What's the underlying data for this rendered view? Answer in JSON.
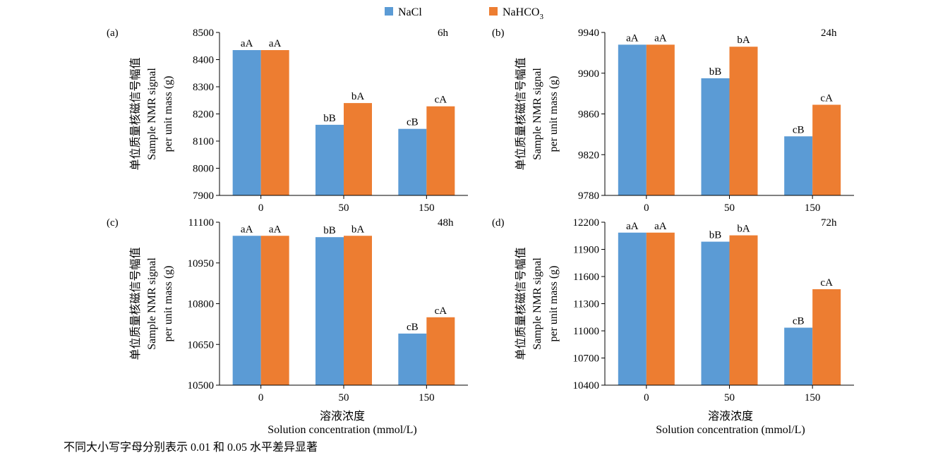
{
  "legend": [
    {
      "name": "NaCl",
      "color": "#5B9BD5"
    },
    {
      "name": "NaHCO",
      "subscript": "3",
      "color": "#ED7D31"
    }
  ],
  "x_axis": {
    "label_cn": "溶液浓度",
    "label_en": "Solution concentration (mmol/L)"
  },
  "footnote": "不同大小写字母分别表示 0.01 和 0.05 水平差异显著",
  "chart_data": [
    {
      "type": "bar",
      "panel": "(a)",
      "title": "6h",
      "categories": [
        "0",
        "50",
        "150"
      ],
      "ylabel_cn": "单位质量核磁信号幅值",
      "ylabel_en": [
        "Sample NMR signal",
        "per unit mass (g)"
      ],
      "ylim": [
        7900,
        8500
      ],
      "yticks": [
        7900,
        8000,
        8100,
        8200,
        8300,
        8400,
        8500
      ],
      "series": [
        {
          "name": "NaCl",
          "values": [
            8435,
            8160,
            8145
          ],
          "labels": [
            "aA",
            "bB",
            "cB"
          ]
        },
        {
          "name": "NaHCO3",
          "values": [
            8435,
            8240,
            8228
          ],
          "labels": [
            "aA",
            "bA",
            "cA"
          ]
        }
      ]
    },
    {
      "type": "bar",
      "panel": "(b)",
      "title": "24h",
      "categories": [
        "0",
        "50",
        "150"
      ],
      "ylabel_cn": "单位质量核磁信号幅值",
      "ylabel_en": [
        "Sample NMR signal",
        "per unit mass (g)"
      ],
      "ylim": [
        9780,
        9940
      ],
      "yticks": [
        9780,
        9820,
        9860,
        9900,
        9940
      ],
      "series": [
        {
          "name": "NaCl",
          "values": [
            9928,
            9895,
            9838
          ],
          "labels": [
            "aA",
            "bB",
            "cB"
          ]
        },
        {
          "name": "NaHCO3",
          "values": [
            9928,
            9926,
            9869
          ],
          "labels": [
            "aA",
            "bA",
            "cA"
          ]
        }
      ]
    },
    {
      "type": "bar",
      "panel": "(c)",
      "title": "48h",
      "categories": [
        "0",
        "50",
        "150"
      ],
      "ylabel_cn": "单位质量核磁信号幅值",
      "ylabel_en": [
        "Sample NMR signal",
        "per unit mass (g)"
      ],
      "ylim": [
        10500,
        11100
      ],
      "yticks": [
        10500,
        10650,
        10800,
        10950,
        11100
      ],
      "series": [
        {
          "name": "NaCl",
          "values": [
            11050,
            11045,
            10690
          ],
          "labels": [
            "aA",
            "bB",
            "cB"
          ]
        },
        {
          "name": "NaHCO3",
          "values": [
            11050,
            11050,
            10750
          ],
          "labels": [
            "aA",
            "bA",
            "cA"
          ]
        }
      ]
    },
    {
      "type": "bar",
      "panel": "(d)",
      "title": "72h",
      "categories": [
        "0",
        "50",
        "150"
      ],
      "ylabel_cn": "单位质量核磁信号幅值",
      "ylabel_en": [
        "Sample NMR signal",
        "per unit mass (g)"
      ],
      "ylim": [
        10400,
        12200
      ],
      "yticks": [
        10400,
        10700,
        11000,
        11300,
        11600,
        11900,
        12200
      ],
      "series": [
        {
          "name": "NaCl",
          "values": [
            12085,
            11985,
            11035
          ],
          "labels": [
            "aA",
            "bB",
            "cB"
          ]
        },
        {
          "name": "NaHCO3",
          "values": [
            12085,
            12055,
            11460
          ],
          "labels": [
            "aA",
            "bA",
            "cA"
          ]
        }
      ]
    }
  ]
}
